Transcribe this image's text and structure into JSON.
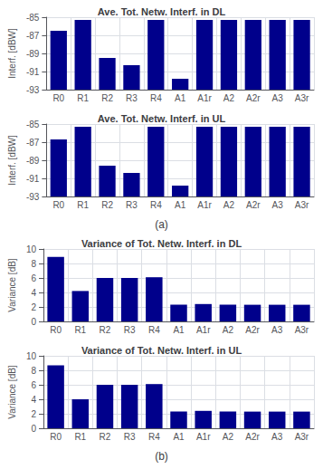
{
  "chart_data": [
    {
      "type": "bar",
      "title": "Ave. Tot. Netw. Interf. in DL",
      "ylabel": "Interf. [dBW]",
      "categories": [
        "R0",
        "R1",
        "R2",
        "R3",
        "R4",
        "A1",
        "A1r",
        "A2",
        "A2r",
        "A3",
        "A3r"
      ],
      "values": [
        -86.5,
        -85.3,
        -89.5,
        -90.3,
        -85.3,
        -91.8,
        -85.3,
        -85.3,
        -85.3,
        -85.3,
        -85.3
      ],
      "color": "#00008B",
      "ylim": [
        -93,
        -85
      ],
      "yticks": [
        -93,
        -91,
        -89,
        -87,
        -85
      ],
      "grid": true
    },
    {
      "type": "bar",
      "title": "Ave. Tot. Netw. Interf. in UL",
      "ylabel": "Interf. [dBW]",
      "categories": [
        "R0",
        "R1",
        "R2",
        "R3",
        "R4",
        "A1",
        "A1r",
        "A2",
        "A2r",
        "A3",
        "A3r"
      ],
      "values": [
        -86.7,
        -85.3,
        -89.6,
        -90.4,
        -85.3,
        -91.8,
        -85.3,
        -85.3,
        -85.3,
        -85.3,
        -85.3
      ],
      "color": "#00008B",
      "ylim": [
        -93,
        -85
      ],
      "yticks": [
        -93,
        -91,
        -89,
        -87,
        -85
      ],
      "grid": true,
      "annotation": "(a)"
    },
    {
      "type": "bar",
      "title": "Variance of Tot. Netw. Interf. in DL",
      "ylabel": "Variance [dB]",
      "categories": [
        "R0",
        "R1",
        "R2",
        "R3",
        "R4",
        "A1",
        "A1r",
        "A2",
        "A2r",
        "A3",
        "A3r"
      ],
      "values": [
        8.9,
        4.2,
        6.0,
        6.0,
        6.1,
        2.3,
        2.4,
        2.3,
        2.3,
        2.3,
        2.3
      ],
      "color": "#00008B",
      "ylim": [
        0,
        10
      ],
      "yticks": [
        0,
        2,
        4,
        6,
        8,
        10
      ],
      "grid": true
    },
    {
      "type": "bar",
      "title": "Variance of Tot. Netw. Interf. in UL",
      "ylabel": "Variance [dB]",
      "categories": [
        "R0",
        "R1",
        "R2",
        "R3",
        "R4",
        "A1",
        "A1r",
        "A2",
        "A2r",
        "A3",
        "A3r"
      ],
      "values": [
        8.7,
        4.0,
        6.0,
        6.0,
        6.1,
        2.3,
        2.4,
        2.3,
        2.3,
        2.3,
        2.3
      ],
      "color": "#00008B",
      "ylim": [
        0,
        10
      ],
      "yticks": [
        0,
        2,
        4,
        6,
        8,
        10
      ],
      "grid": true,
      "annotation": "(b)"
    }
  ]
}
